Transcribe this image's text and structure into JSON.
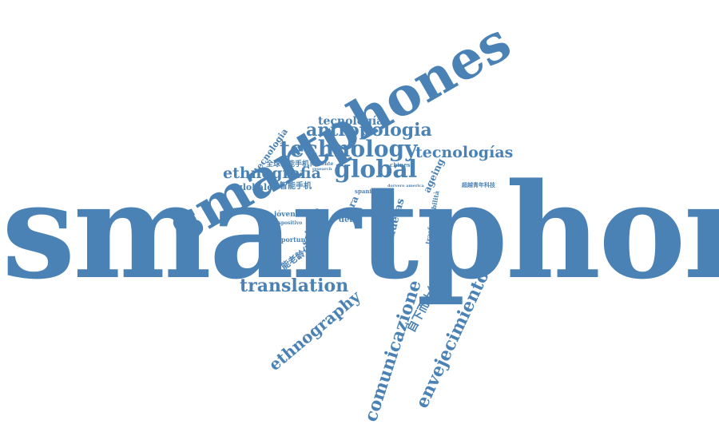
{
  "accent_color": "#4a82b5",
  "words": {
    "smartphone": "smartphone",
    "smartphones": "smartphones",
    "technology": "technology",
    "antropologia": "antropologia",
    "tecnologias": "tecnologías",
    "tecnologia_top": "tecnología",
    "tecnologia_side": "tecnologia",
    "ethnografia": "ethnografia",
    "global": "global",
    "globale": "globale",
    "quanqiu": "全球智能手机",
    "zhineng": "智能手机",
    "chaoyue": "超越青年科技",
    "jovenes": "jóvenes",
    "dispositivo": "dispositivo",
    "opportunism": "opportunism",
    "scienze": "scienze",
    "della": "della",
    "para": "para",
    "nuevas": "nuevas",
    "ageing": "ageing",
    "trasformabilita": "trasformabilità",
    "chinese": "chinese",
    "spanish": "spanish",
    "presente": "presente",
    "research": "research",
    "laoling": "智能老龄化",
    "translation": "translation",
    "ethnography": "ethnography",
    "comunicazione": "comunicazione",
    "zixia": "自下而上的智能",
    "envejecimiento": "envejecimiento",
    "dorvero_america": "dorvero america"
  }
}
